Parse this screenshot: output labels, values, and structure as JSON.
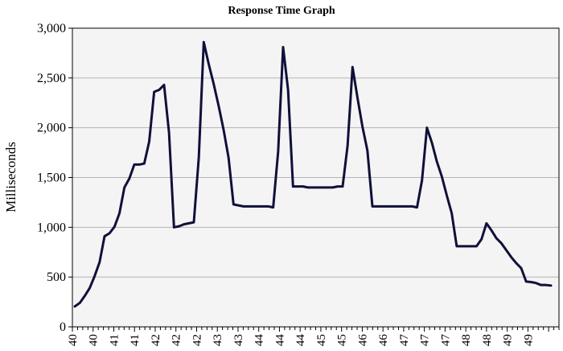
{
  "chart_data": {
    "type": "line",
    "title": "Response Time Graph",
    "xlabel": "",
    "ylabel": "Milliseconds",
    "ylim": [
      0,
      3000
    ],
    "yticks": [
      0,
      500,
      1000,
      1500,
      2000,
      2500,
      3000
    ],
    "ytick_labels": [
      "0",
      "500",
      "1,000",
      "1,500",
      "2,000",
      "2,500",
      "3,000"
    ],
    "xtick_labels": [
      "40",
      "40",
      "41",
      "41",
      "42",
      "42",
      "42",
      "43",
      "43",
      "44",
      "44",
      "44",
      "45",
      "45",
      "46",
      "46",
      "47",
      "47",
      "47",
      "48",
      "48",
      "49",
      "49"
    ],
    "grid": true,
    "legend": "none",
    "colors": {
      "line": "#10103a",
      "plot_background": "#f4f4f4",
      "grid": "#b4b4b4"
    },
    "series": [
      {
        "name": "Response Time",
        "values": [
          205,
          240,
          310,
          390,
          510,
          650,
          910,
          940,
          1005,
          1140,
          1400,
          1490,
          1630,
          1630,
          1640,
          1860,
          2360,
          2380,
          2430,
          1950,
          1000,
          1010,
          1030,
          1040,
          1050,
          1700,
          2860,
          2640,
          2440,
          2220,
          1980,
          1700,
          1230,
          1220,
          1210,
          1210,
          1210,
          1210,
          1210,
          1210,
          1200,
          1760,
          2810,
          2380,
          1410,
          1410,
          1410,
          1400,
          1400,
          1400,
          1400,
          1400,
          1400,
          1410,
          1410,
          1820,
          2610,
          2300,
          2010,
          1770,
          1210,
          1210,
          1210,
          1210,
          1210,
          1210,
          1210,
          1210,
          1210,
          1200,
          1470,
          2000,
          1850,
          1660,
          1510,
          1320,
          1140,
          810,
          810,
          810,
          810,
          810,
          880,
          1040,
          970,
          890,
          840,
          770,
          700,
          640,
          590,
          455,
          450,
          440,
          420,
          420,
          415
        ]
      }
    ]
  }
}
